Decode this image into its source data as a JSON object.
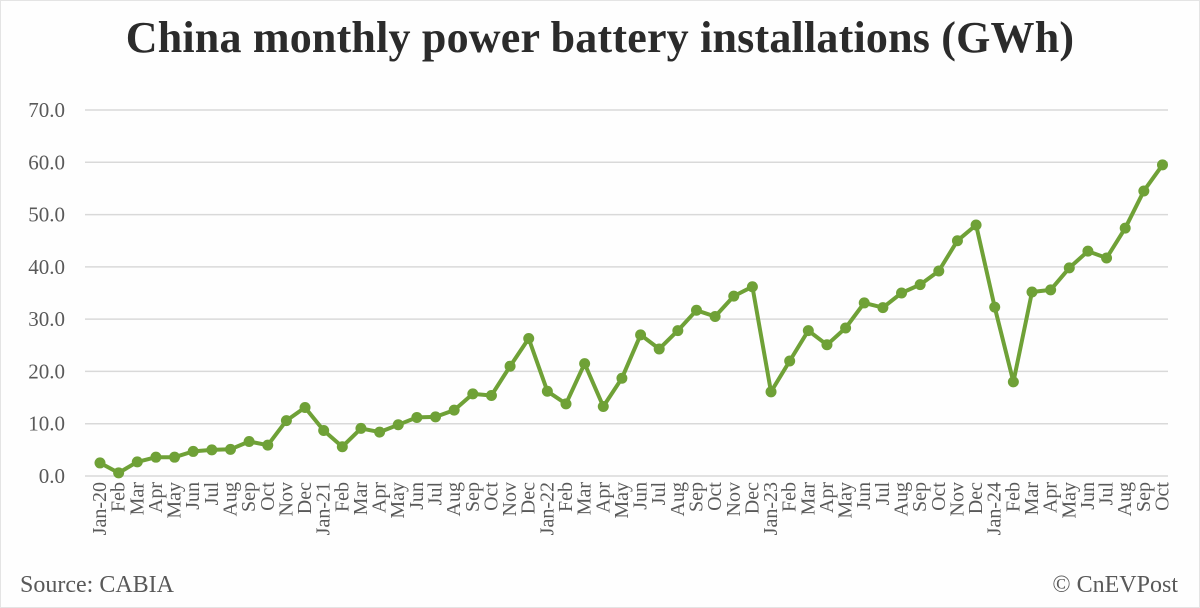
{
  "title": "China monthly power battery installations (GWh)",
  "footer": {
    "source": "Source: CABIA",
    "credit": "© CnEVPost"
  },
  "colors": {
    "line": "#6FA137",
    "grid": "#d9d9d9",
    "text": "#595959",
    "title": "#2b2b2b"
  },
  "chart_data": {
    "type": "line",
    "title": "China monthly power battery installations (GWh)",
    "xlabel": "",
    "ylabel": "",
    "ylim": [
      0,
      70
    ],
    "yticks": [
      "0.0",
      "10.0",
      "20.0",
      "30.0",
      "40.0",
      "50.0",
      "60.0",
      "70.0"
    ],
    "grid": true,
    "legend": null,
    "categories": [
      "Jan-20",
      "Feb",
      "Mar",
      "Apr",
      "May",
      "Jun",
      "Jul",
      "Aug",
      "Sep",
      "Oct",
      "Nov",
      "Dec",
      "Jan-21",
      "Feb",
      "Mar",
      "Apr",
      "May",
      "Jun",
      "Jul",
      "Aug",
      "Sep",
      "Oct",
      "Nov",
      "Dec",
      "Jan-22",
      "Feb",
      "Mar",
      "Apr",
      "May",
      "Jun",
      "Jul",
      "Aug",
      "Sep",
      "Oct",
      "Nov",
      "Dec",
      "Jan-23",
      "Feb",
      "Mar",
      "Apr",
      "May",
      "Jun",
      "Jul",
      "Aug",
      "Sep",
      "Oct",
      "Nov",
      "Dec",
      "Jan-24",
      "Feb",
      "Mar",
      "Apr",
      "May",
      "Jun",
      "Jul",
      "Aug",
      "Sep",
      "Oct"
    ],
    "series": [
      {
        "name": "Installations (GWh)",
        "values": [
          2.5,
          0.6,
          2.7,
          3.6,
          3.6,
          4.7,
          5.0,
          5.1,
          6.6,
          5.9,
          10.6,
          13.1,
          8.7,
          5.6,
          9.1,
          8.4,
          9.8,
          11.2,
          11.3,
          12.6,
          15.7,
          15.4,
          21.0,
          26.3,
          16.2,
          13.8,
          21.5,
          13.3,
          18.7,
          27.0,
          24.3,
          27.8,
          31.7,
          30.5,
          34.4,
          36.2,
          16.1,
          22.0,
          27.8,
          25.1,
          28.3,
          33.1,
          32.2,
          35.0,
          36.6,
          39.2,
          45.0,
          48.0,
          32.3,
          18.0,
          35.2,
          35.6,
          39.8,
          43.0,
          41.7,
          47.4,
          54.5,
          59.5
        ]
      }
    ]
  }
}
